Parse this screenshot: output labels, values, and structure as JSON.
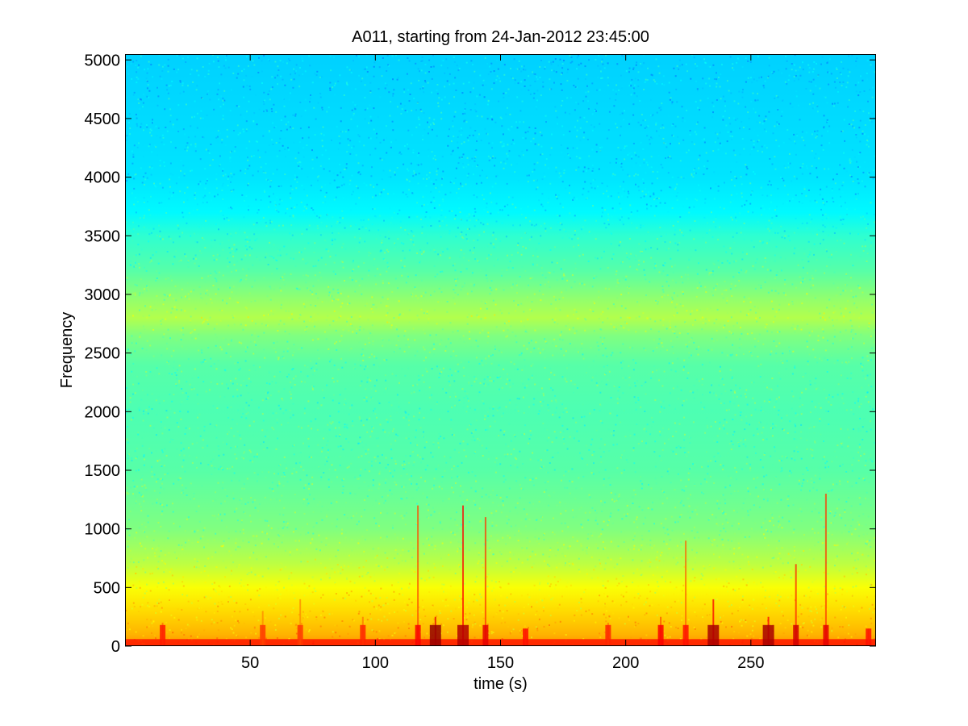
{
  "chart_data": {
    "type": "heatmap",
    "title": "A011, starting from 24-Jan-2012 23:45:00",
    "xlabel": "time (s)",
    "ylabel": "Frequency",
    "xlim": [
      0,
      300
    ],
    "ylim": [
      0,
      5050
    ],
    "x_ticks": [
      50,
      100,
      150,
      200,
      250
    ],
    "y_ticks": [
      0,
      500,
      1000,
      1500,
      2000,
      2500,
      3000,
      3500,
      4000,
      4500,
      5000
    ],
    "grid": false,
    "colormap": "jet",
    "colors": {
      "high_freq": "#17dde8",
      "mid_freq": "#40e8b0",
      "band_2800": "#9ef27a",
      "low_freq": "#e8f53a",
      "near_zero": "#f5c020",
      "transient": "#e02010"
    },
    "intensity_profile": [
      {
        "freq": 5050,
        "level": 0.33
      },
      {
        "freq": 4500,
        "level": 0.34
      },
      {
        "freq": 4000,
        "level": 0.35
      },
      {
        "freq": 3700,
        "level": 0.37
      },
      {
        "freq": 3500,
        "level": 0.42
      },
      {
        "freq": 3200,
        "level": 0.46
      },
      {
        "freq": 2950,
        "level": 0.52
      },
      {
        "freq": 2800,
        "level": 0.55
      },
      {
        "freq": 2650,
        "level": 0.5
      },
      {
        "freq": 2400,
        "level": 0.46
      },
      {
        "freq": 2000,
        "level": 0.45
      },
      {
        "freq": 1500,
        "level": 0.46
      },
      {
        "freq": 1000,
        "level": 0.5
      },
      {
        "freq": 700,
        "level": 0.56
      },
      {
        "freq": 500,
        "level": 0.62
      },
      {
        "freq": 300,
        "level": 0.66
      },
      {
        "freq": 100,
        "level": 0.7
      },
      {
        "freq": 0,
        "level": 0.74
      }
    ],
    "transients": [
      {
        "t": 15,
        "f_max": 200,
        "level": 0.85
      },
      {
        "t": 55,
        "f_max": 300,
        "level": 0.82
      },
      {
        "t": 70,
        "f_max": 400,
        "level": 0.82
      },
      {
        "t": 95,
        "f_max": 250,
        "level": 0.84
      },
      {
        "t": 117,
        "f_max": 1200,
        "level": 0.88
      },
      {
        "t": 124,
        "f_max": 250,
        "level": 0.98
      },
      {
        "t": 135,
        "f_max": 1200,
        "level": 0.95
      },
      {
        "t": 144,
        "f_max": 1100,
        "level": 0.9
      },
      {
        "t": 160,
        "f_max": 150,
        "level": 0.86
      },
      {
        "t": 193,
        "f_max": 200,
        "level": 0.84
      },
      {
        "t": 214,
        "f_max": 250,
        "level": 0.88
      },
      {
        "t": 224,
        "f_max": 900,
        "level": 0.86
      },
      {
        "t": 235,
        "f_max": 400,
        "level": 0.96
      },
      {
        "t": 257,
        "f_max": 250,
        "level": 0.96
      },
      {
        "t": 268,
        "f_max": 700,
        "level": 0.92
      },
      {
        "t": 280,
        "f_max": 1300,
        "level": 0.9
      },
      {
        "t": 297,
        "f_max": 150,
        "level": 0.86
      }
    ]
  }
}
